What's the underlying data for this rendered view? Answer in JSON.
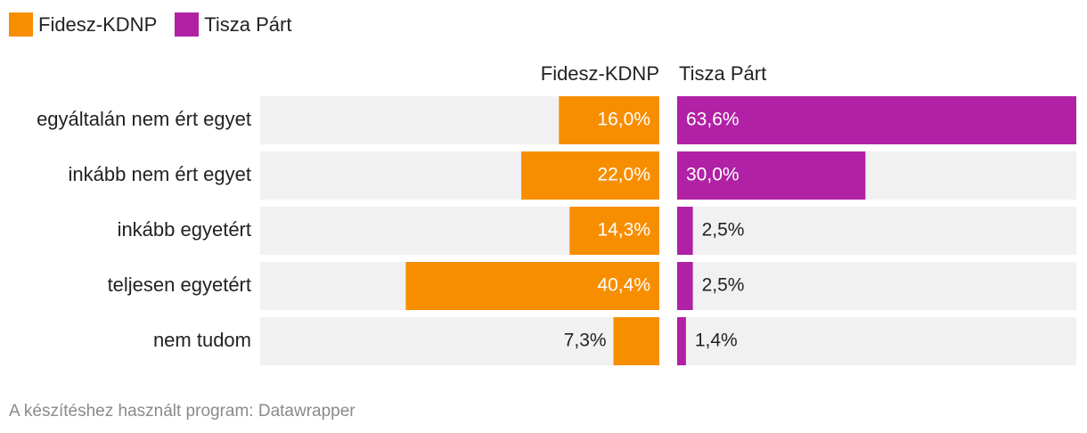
{
  "legend": {
    "items": [
      {
        "label": "Fidesz-KDNP",
        "color": "#f78e00"
      },
      {
        "label": "Tisza Párt",
        "color": "#b121a6"
      }
    ]
  },
  "chart_data": {
    "type": "bar",
    "orientation": "horizontal-split",
    "categories": [
      "egyáltalán nem ért egyet",
      "inkább nem ért egyet",
      "inkább egyetért",
      "teljesen egyetért",
      "nem tudom"
    ],
    "series": [
      {
        "name": "Fidesz-KDNP",
        "values": [
          16.0,
          22.0,
          14.3,
          40.4,
          7.3
        ],
        "labels": [
          "16,0%",
          "22,0%",
          "14,3%",
          "40,4%",
          "7,3%"
        ],
        "color": "#f78e00"
      },
      {
        "name": "Tisza Párt",
        "values": [
          63.6,
          30.0,
          2.5,
          2.5,
          1.4
        ],
        "labels": [
          "63,6%",
          "30,0%",
          "2,5%",
          "2,5%",
          "1,4%"
        ],
        "color": "#b121a6"
      }
    ],
    "xlim": [
      0,
      63.6
    ],
    "background_color": "#f1f1f1",
    "value_unit": "%"
  },
  "source": {
    "text": "A készítéshez használt program: Datawrapper"
  }
}
